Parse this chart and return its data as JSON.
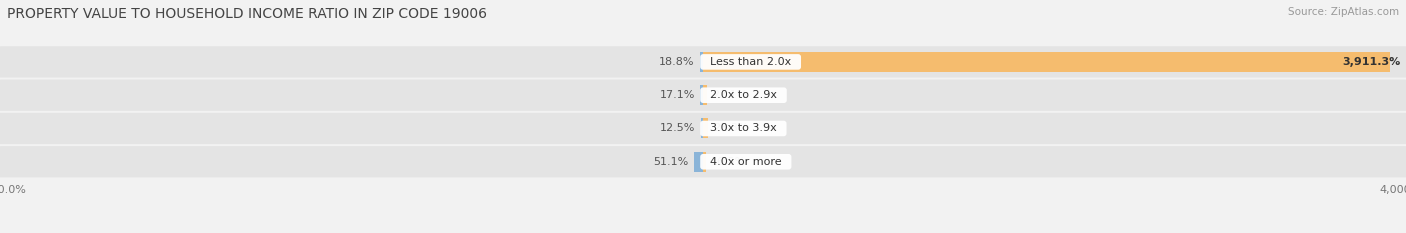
{
  "title": "PROPERTY VALUE TO HOUSEHOLD INCOME RATIO IN ZIP CODE 19006",
  "source": "Source: ZipAtlas.com",
  "categories": [
    "Less than 2.0x",
    "2.0x to 2.9x",
    "3.0x to 3.9x",
    "4.0x or more"
  ],
  "without_mortgage": [
    18.8,
    17.1,
    12.5,
    51.1
  ],
  "with_mortgage": [
    3911.3,
    22.1,
    28.3,
    16.5
  ],
  "axis_limit": 4000.0,
  "color_without": "#8ab4d8",
  "color_with": "#f5bc6e",
  "bg_color": "#f2f2f2",
  "bar_bg_color": "#e4e4e4",
  "title_fontsize": 10,
  "label_fontsize": 8,
  "tick_fontsize": 8,
  "source_fontsize": 7.5
}
